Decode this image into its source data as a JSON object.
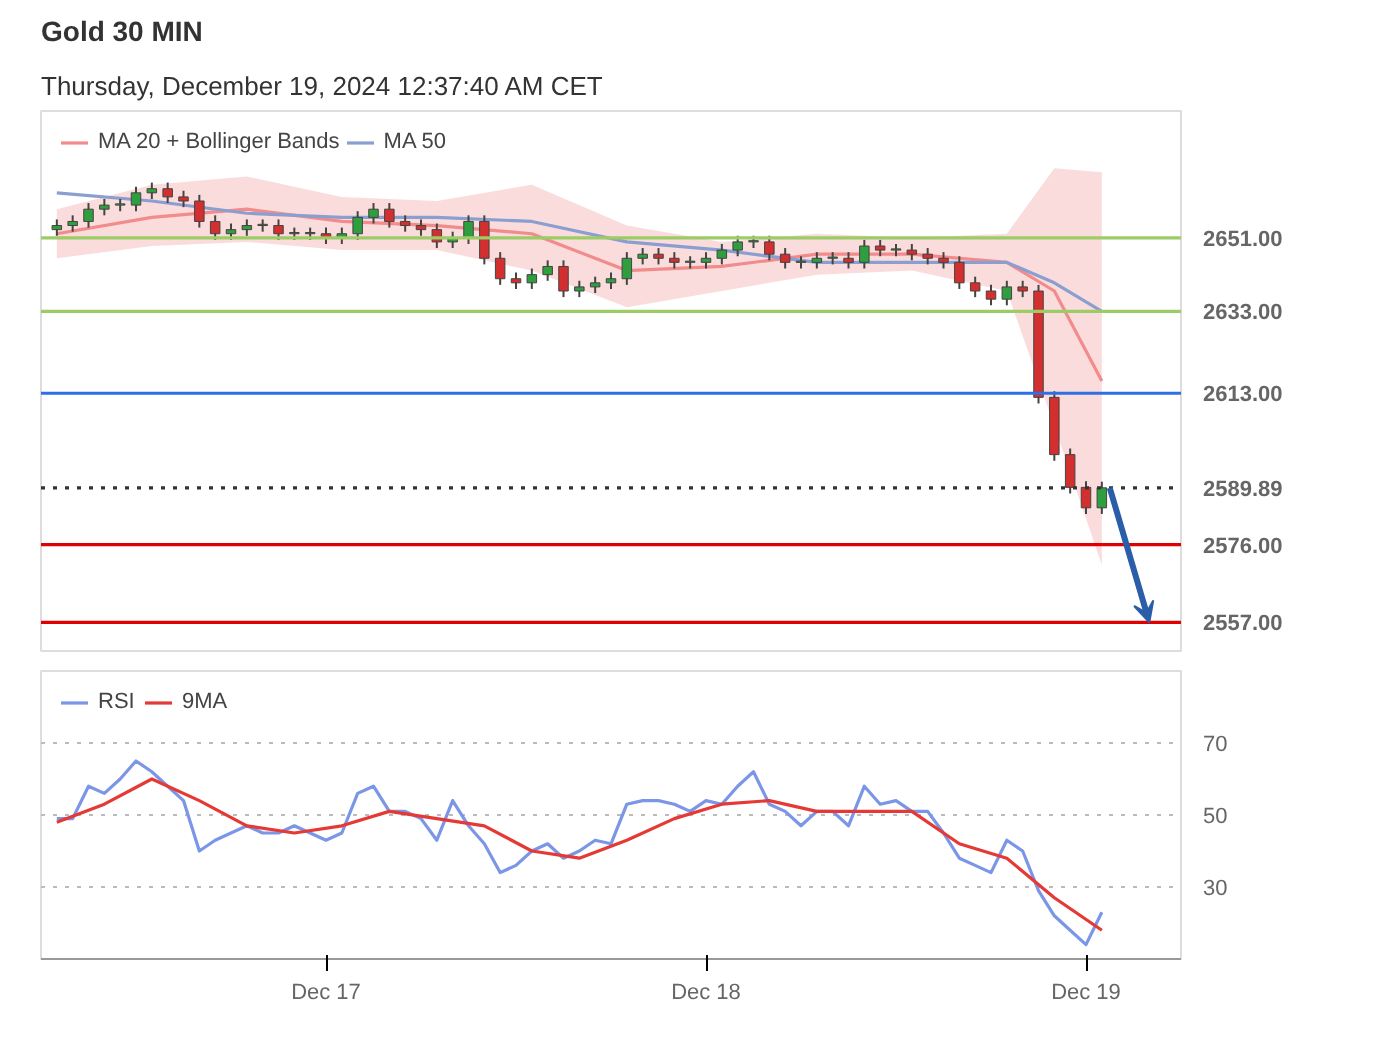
{
  "chart_data": [
    {
      "type": "candlestick",
      "title": "Gold",
      "subtitle": "30 MIN",
      "annotations": [
        "Thursday, December 19, 2024 12:37:40 AM CET"
      ],
      "x": [
        "2024-12-16T07:00",
        "2024-12-16T08:00",
        "2024-12-16T09:00",
        "2024-12-16T10:00",
        "2024-12-16T11:00",
        "2024-12-16T12:00",
        "2024-12-16T13:00",
        "2024-12-16T14:00",
        "2024-12-16T15:00",
        "2024-12-16T16:00",
        "2024-12-16T17:00",
        "2024-12-16T18:00",
        "2024-12-16T19:00",
        "2024-12-16T20:00",
        "2024-12-16T21:00",
        "2024-12-16T22:00",
        "2024-12-16T23:00",
        "2024-12-17T00:00",
        "2024-12-17T01:00",
        "2024-12-17T02:00",
        "2024-12-17T03:00",
        "2024-12-17T04:00",
        "2024-12-17T05:00",
        "2024-12-17T06:00",
        "2024-12-17T07:00",
        "2024-12-17T08:00",
        "2024-12-17T09:00",
        "2024-12-17T10:00",
        "2024-12-17T11:00",
        "2024-12-17T12:00",
        "2024-12-17T13:00",
        "2024-12-17T14:00",
        "2024-12-17T15:00",
        "2024-12-17T16:00",
        "2024-12-17T17:00",
        "2024-12-17T18:00",
        "2024-12-17T19:00",
        "2024-12-17T20:00",
        "2024-12-17T21:00",
        "2024-12-17T22:00",
        "2024-12-17T23:00",
        "2024-12-18T00:00",
        "2024-12-18T01:00",
        "2024-12-18T02:00",
        "2024-12-18T03:00",
        "2024-12-18T04:00",
        "2024-12-18T05:00",
        "2024-12-18T06:00",
        "2024-12-18T07:00",
        "2024-12-18T08:00",
        "2024-12-18T09:00",
        "2024-12-18T10:00",
        "2024-12-18T11:00",
        "2024-12-18T12:00",
        "2024-12-18T13:00",
        "2024-12-18T14:00",
        "2024-12-18T15:00",
        "2024-12-18T16:00",
        "2024-12-18T17:00",
        "2024-12-18T18:00",
        "2024-12-18T19:00",
        "2024-12-18T20:00",
        "2024-12-18T21:00",
        "2024-12-18T22:00",
        "2024-12-18T23:00",
        "2024-12-19T00:00",
        "2024-12-19T01:00"
      ],
      "ohlc": [
        [
          2653,
          2655.5,
          2651.5,
          2654
        ],
        [
          2654,
          2656.5,
          2652.5,
          2655
        ],
        [
          2655,
          2659.5,
          2653.5,
          2658
        ],
        [
          2658,
          2660.5,
          2656.5,
          2659
        ],
        [
          2659,
          2660.5,
          2657.5,
          2659
        ],
        [
          2659,
          2663.5,
          2657.5,
          2662
        ],
        [
          2662,
          2664.5,
          2660.5,
          2663
        ],
        [
          2663,
          2664.5,
          2659.5,
          2661
        ],
        [
          2661,
          2662.5,
          2658.5,
          2660
        ],
        [
          2660,
          2661.5,
          2653.5,
          2655
        ],
        [
          2655,
          2656.5,
          2650.5,
          2652
        ],
        [
          2652,
          2654.5,
          2650.5,
          2653
        ],
        [
          2653,
          2655.5,
          2651.5,
          2654
        ],
        [
          2654,
          2655.5,
          2652.5,
          2654
        ],
        [
          2654,
          2655.5,
          2650.5,
          2652
        ],
        [
          2652,
          2653.5,
          2650.5,
          2652
        ],
        [
          2652,
          2653.5,
          2650.5,
          2652
        ],
        [
          2652,
          2653.5,
          2649.5,
          2651
        ],
        [
          2651,
          2653.5,
          2649.5,
          2652
        ],
        [
          2652,
          2657.5,
          2650.5,
          2656
        ],
        [
          2656,
          2659.5,
          2654.5,
          2658
        ],
        [
          2658,
          2659.5,
          2653.5,
          2655
        ],
        [
          2655,
          2656.5,
          2652.5,
          2654
        ],
        [
          2654,
          2655.5,
          2651.5,
          2653
        ],
        [
          2653,
          2654.5,
          2648.5,
          2650
        ],
        [
          2650,
          2652.5,
          2648.5,
          2651
        ],
        [
          2651,
          2656.5,
          2649.5,
          2655
        ],
        [
          2655,
          2656.5,
          2644.5,
          2646
        ],
        [
          2646,
          2647.5,
          2639.5,
          2641
        ],
        [
          2641,
          2642.5,
          2638.5,
          2640
        ],
        [
          2640,
          2643.5,
          2638.5,
          2642
        ],
        [
          2642,
          2645.5,
          2640.5,
          2644
        ],
        [
          2644,
          2645.5,
          2636.5,
          2638
        ],
        [
          2638,
          2640.5,
          2636.5,
          2639
        ],
        [
          2639,
          2641.5,
          2637.5,
          2640
        ],
        [
          2640,
          2642.5,
          2638.5,
          2641
        ],
        [
          2641,
          2647.5,
          2639.5,
          2646
        ],
        [
          2646,
          2648.5,
          2644.5,
          2647
        ],
        [
          2647,
          2648.5,
          2644.5,
          2646
        ],
        [
          2646,
          2647.5,
          2643.5,
          2645
        ],
        [
          2645,
          2646.5,
          2643.5,
          2645
        ],
        [
          2645,
          2647.5,
          2643.5,
          2646
        ],
        [
          2646,
          2649.5,
          2644.5,
          2648
        ],
        [
          2648,
          2651.5,
          2646.5,
          2650
        ],
        [
          2650,
          2651.5,
          2648.5,
          2650
        ],
        [
          2650,
          2651.5,
          2645.5,
          2647
        ],
        [
          2647,
          2648.5,
          2643.5,
          2645
        ],
        [
          2645,
          2646.5,
          2643.5,
          2645
        ],
        [
          2645,
          2647.5,
          2643.5,
          2646
        ],
        [
          2646,
          2647.5,
          2644.5,
          2646
        ],
        [
          2646,
          2647.5,
          2643.5,
          2645
        ],
        [
          2645,
          2650.5,
          2643.5,
          2649
        ],
        [
          2649,
          2650.5,
          2646.5,
          2648
        ],
        [
          2648,
          2649.5,
          2646.5,
          2648
        ],
        [
          2648,
          2649.5,
          2645.5,
          2647
        ],
        [
          2647,
          2648.5,
          2644.5,
          2646
        ],
        [
          2646,
          2647.5,
          2643.5,
          2645
        ],
        [
          2645,
          2646.5,
          2638.5,
          2640
        ],
        [
          2640,
          2641.5,
          2636.5,
          2638
        ],
        [
          2638,
          2639.5,
          2634.5,
          2636
        ],
        [
          2636,
          2640.5,
          2634.5,
          2639
        ],
        [
          2639,
          2640.5,
          2636.5,
          2638
        ],
        [
          2638,
          2639.5,
          2610.5,
          2612
        ],
        [
          2612,
          2613.5,
          2596.5,
          2598
        ],
        [
          2598,
          2599.5,
          2588.5,
          2590
        ],
        [
          2590,
          2591.5,
          2583.5,
          2585
        ],
        [
          2585,
          2591.39,
          2583.5,
          2589.89
        ]
      ],
      "series": [
        {
          "name": "MA 20 + Bollinger Bands",
          "type": "line",
          "color": "#f28b8b",
          "x": [
            "2024-12-16T07:00",
            "2024-12-16T13:00",
            "2024-12-16T19:00",
            "2024-12-17T01:00",
            "2024-12-17T07:00",
            "2024-12-17T13:00",
            "2024-12-17T19:00",
            "2024-12-18T01:00",
            "2024-12-18T07:00",
            "2024-12-18T13:00",
            "2024-12-18T19:00",
            "2024-12-18T22:00",
            "2024-12-19T01:00"
          ],
          "values": [
            2652,
            2656,
            2658,
            2655,
            2654,
            2652,
            2643,
            2644,
            2647,
            2647,
            2645,
            2638,
            2616
          ],
          "lower": [
            2646,
            2649,
            2650,
            2648,
            2648,
            2643,
            2634,
            2638,
            2642,
            2643,
            2638,
            2605,
            2571
          ],
          "upper": [
            2658,
            2664,
            2666,
            2661,
            2660,
            2664,
            2654,
            2650,
            2652,
            2651,
            2652,
            2668,
            2667
          ]
        },
        {
          "name": "MA 50",
          "type": "line",
          "color": "#8a9fd0",
          "x": [
            "2024-12-16T07:00",
            "2024-12-16T13:00",
            "2024-12-16T19:00",
            "2024-12-17T01:00",
            "2024-12-17T07:00",
            "2024-12-17T13:00",
            "2024-12-17T19:00",
            "2024-12-18T01:00",
            "2024-12-18T07:00",
            "2024-12-18T13:00",
            "2024-12-18T19:00",
            "2024-12-18T22:00",
            "2024-12-19T01:00"
          ],
          "values": [
            2662,
            2660,
            2657,
            2656,
            2656,
            2655,
            2650,
            2648,
            2645,
            2645,
            2645,
            2640,
            2633
          ]
        }
      ],
      "xlim": [
        "2024-12-16T06:00",
        "2024-12-19T06:00"
      ],
      "ylim": [
        2550,
        2682
      ],
      "tick_labels": "y",
      "legend": "top left",
      "yticks": [
        {
          "value": 2651,
          "label": "2651.00"
        },
        {
          "value": 2633,
          "label": "2633.00"
        },
        {
          "value": 2613,
          "label": "2613.00"
        },
        {
          "value": 2589.89,
          "label": "2589.89"
        },
        {
          "value": 2576,
          "label": "2576.00"
        },
        {
          "value": 2557,
          "label": "2557.00"
        }
      ],
      "ref_lines": [
        {
          "axis": "y",
          "value": 2651,
          "color": "#9ccc65",
          "line_style": "solid"
        },
        {
          "axis": "y",
          "value": 2633,
          "color": "#9ccc65",
          "line_style": "solid"
        },
        {
          "axis": "y",
          "value": 2613,
          "color": "#2f6fe6",
          "line_style": "solid"
        },
        {
          "axis": "y",
          "value": 2589.89,
          "color": "#333333",
          "line_style": "dotted"
        },
        {
          "axis": "y",
          "value": 2576,
          "color": "#e00000",
          "line_style": "solid"
        },
        {
          "axis": "y",
          "value": 2557,
          "color": "#e00000",
          "line_style": "solid"
        }
      ]
    },
    {
      "type": "line",
      "series": [
        {
          "name": "RSI",
          "color": "#7b96e6",
          "x": [
            "2024-12-16T07:00",
            "2024-12-16T08:00",
            "2024-12-16T09:00",
            "2024-12-16T10:00",
            "2024-12-16T11:00",
            "2024-12-16T12:00",
            "2024-12-16T13:00",
            "2024-12-16T14:00",
            "2024-12-16T15:00",
            "2024-12-16T16:00",
            "2024-12-16T17:00",
            "2024-12-16T18:00",
            "2024-12-16T19:00",
            "2024-12-16T20:00",
            "2024-12-16T21:00",
            "2024-12-16T22:00",
            "2024-12-16T23:00",
            "2024-12-17T00:00",
            "2024-12-17T01:00",
            "2024-12-17T02:00",
            "2024-12-17T03:00",
            "2024-12-17T04:00",
            "2024-12-17T05:00",
            "2024-12-17T06:00",
            "2024-12-17T07:00",
            "2024-12-17T08:00",
            "2024-12-17T09:00",
            "2024-12-17T10:00",
            "2024-12-17T11:00",
            "2024-12-17T12:00",
            "2024-12-17T13:00",
            "2024-12-17T14:00",
            "2024-12-17T15:00",
            "2024-12-17T16:00",
            "2024-12-17T17:00",
            "2024-12-17T18:00",
            "2024-12-17T19:00",
            "2024-12-17T20:00",
            "2024-12-17T21:00",
            "2024-12-17T22:00",
            "2024-12-17T23:00",
            "2024-12-18T00:00",
            "2024-12-18T01:00",
            "2024-12-18T02:00",
            "2024-12-18T03:00",
            "2024-12-18T04:00",
            "2024-12-18T05:00",
            "2024-12-18T06:00",
            "2024-12-18T07:00",
            "2024-12-18T08:00",
            "2024-12-18T09:00",
            "2024-12-18T10:00",
            "2024-12-18T11:00",
            "2024-12-18T12:00",
            "2024-12-18T13:00",
            "2024-12-18T14:00",
            "2024-12-18T15:00",
            "2024-12-18T16:00",
            "2024-12-18T17:00",
            "2024-12-18T18:00",
            "2024-12-18T19:00",
            "2024-12-18T20:00",
            "2024-12-18T21:00",
            "2024-12-18T22:00",
            "2024-12-18T23:00",
            "2024-12-19T00:00",
            "2024-12-19T01:00"
          ],
          "values": [
            49,
            49,
            58,
            56,
            60,
            65,
            62,
            58,
            54,
            40,
            43,
            45,
            47,
            45,
            45,
            47,
            45,
            43,
            45,
            56,
            58,
            51,
            51,
            49,
            43,
            54,
            47,
            42,
            34,
            36,
            40,
            42,
            38,
            40,
            43,
            42,
            53,
            54,
            54,
            53,
            51,
            54,
            53,
            58,
            62,
            53,
            51,
            47,
            51,
            51,
            47,
            58,
            53,
            54,
            51,
            51,
            45,
            38,
            36,
            34,
            43,
            40,
            29,
            22,
            18,
            14,
            23
          ]
        },
        {
          "name": "9MA",
          "color": "#e53935",
          "x": [
            "2024-12-16T07:00",
            "2024-12-16T10:00",
            "2024-12-16T13:00",
            "2024-12-16T16:00",
            "2024-12-16T19:00",
            "2024-12-16T22:00",
            "2024-12-17T01:00",
            "2024-12-17T04:00",
            "2024-12-17T07:00",
            "2024-12-17T10:00",
            "2024-12-17T13:00",
            "2024-12-17T16:00",
            "2024-12-17T19:00",
            "2024-12-17T22:00",
            "2024-12-18T01:00",
            "2024-12-18T04:00",
            "2024-12-18T07:00",
            "2024-12-18T10:00",
            "2024-12-18T13:00",
            "2024-12-18T16:00",
            "2024-12-18T19:00",
            "2024-12-18T22:00",
            "2024-12-19T01:00"
          ],
          "values": [
            48,
            53,
            60,
            54,
            47,
            45,
            47,
            51,
            49,
            47,
            40,
            38,
            43,
            49,
            53,
            54,
            51,
            51,
            51,
            42,
            38,
            27,
            18
          ]
        }
      ],
      "xlim": [
        "2024-12-16T06:00",
        "2024-12-19T06:00"
      ],
      "ylim": [
        10,
        90
      ],
      "yticks": [
        30,
        50,
        70
      ],
      "xticks": [
        {
          "value": "2024-12-17",
          "label": "Dec 17"
        },
        {
          "value": "2024-12-18",
          "label": "Dec 18"
        },
        {
          "value": "2024-12-19",
          "label": "Dec 19"
        }
      ],
      "grid": "y",
      "legend": "top left"
    }
  ]
}
